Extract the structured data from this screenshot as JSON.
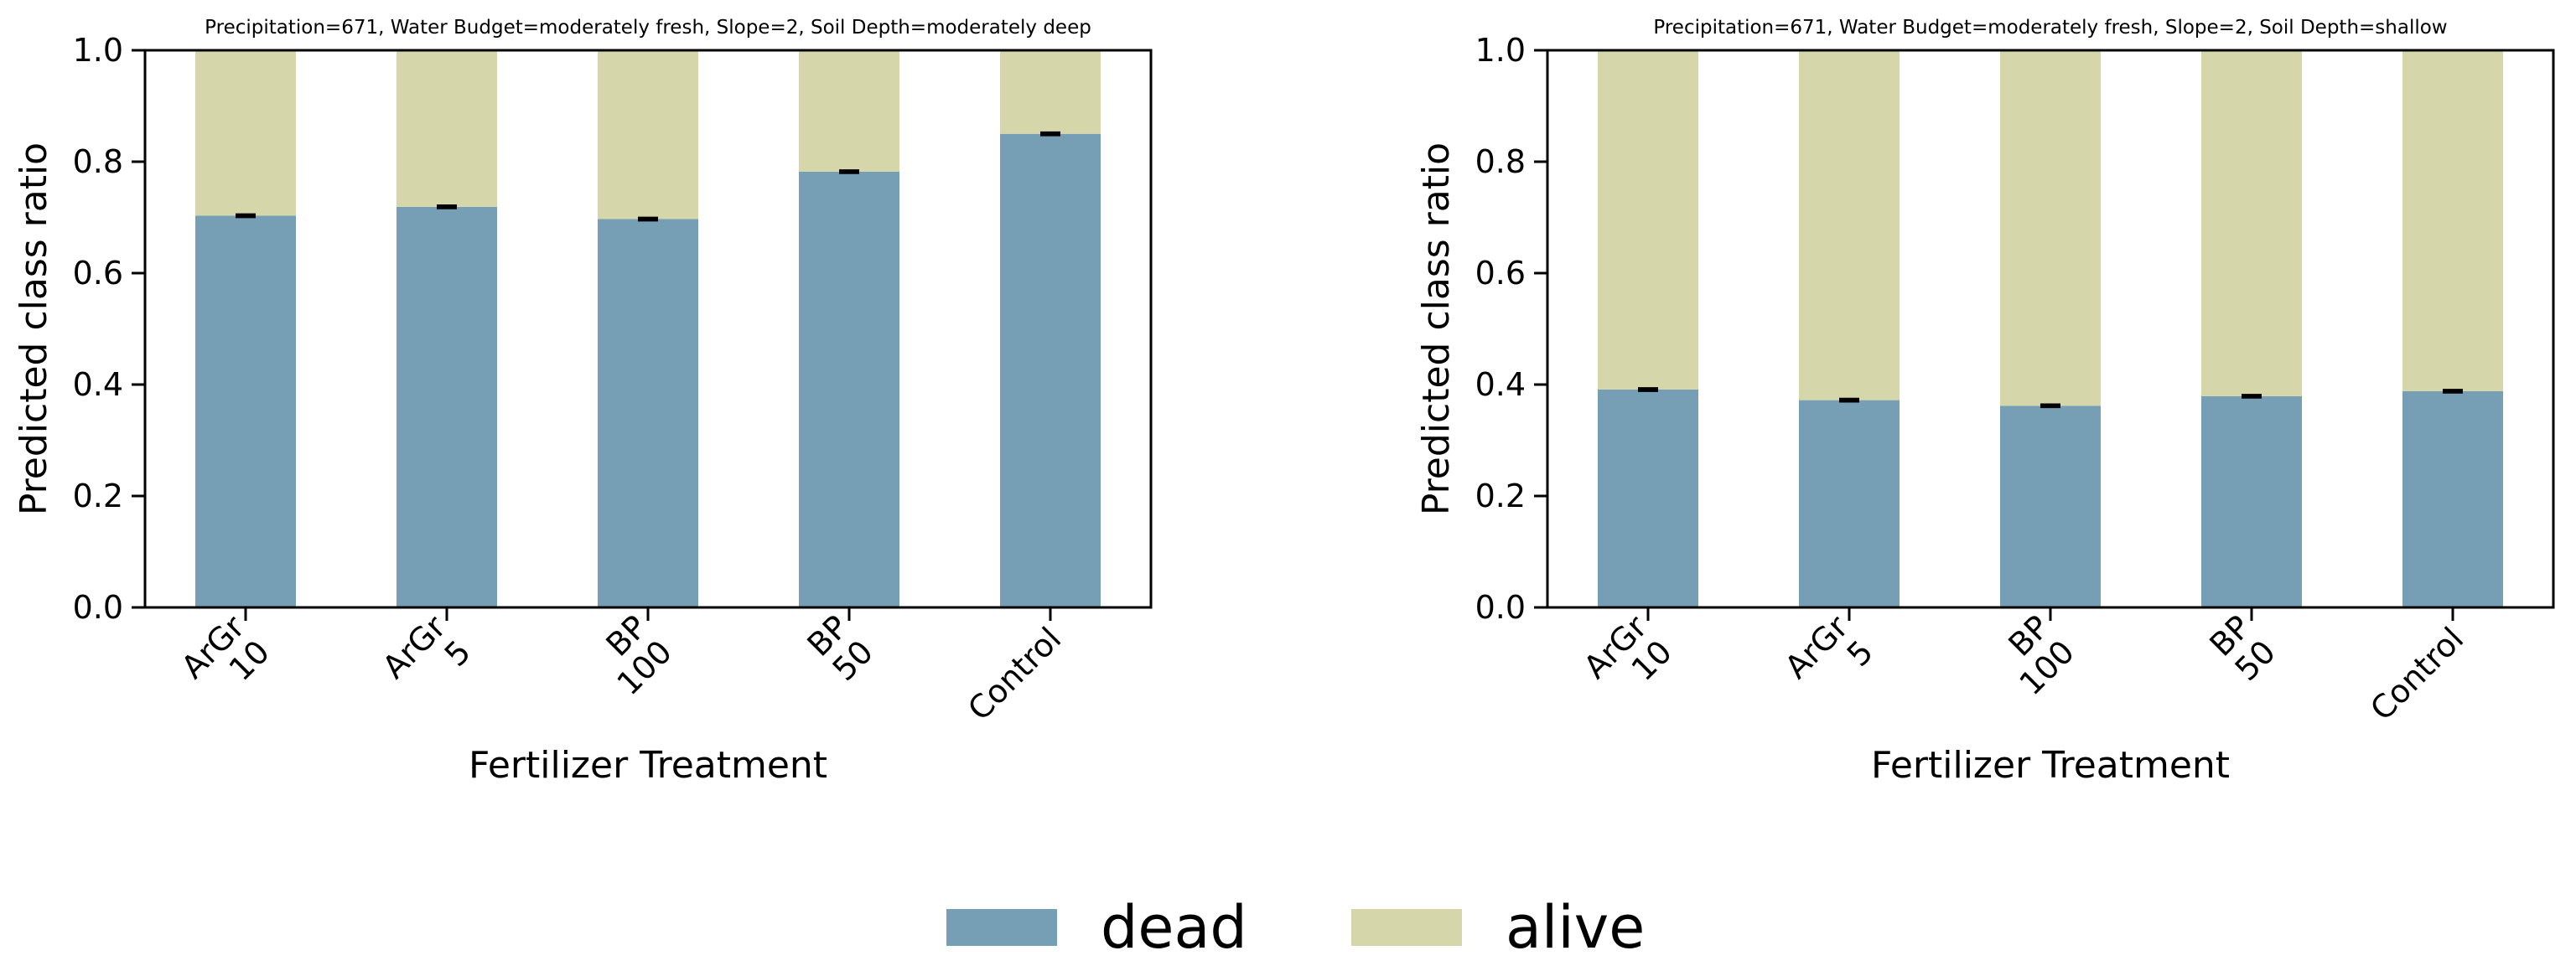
{
  "colors": {
    "dead": "#769fb6",
    "alive": "#d5d6aa",
    "axis": "#000000",
    "errbar": "#000000"
  },
  "legend": {
    "items": [
      {
        "label": "dead",
        "color": "#769fb6"
      },
      {
        "label": "alive",
        "color": "#d5d6aa"
      }
    ]
  },
  "chart_data": [
    {
      "type": "bar",
      "stacked": true,
      "title": "Precipitation=671, Water Budget=moderately fresh, Slope=2, Soil Depth=moderately deep",
      "xlabel": "Fertilizer Treatment",
      "ylabel": "Predicted class ratio",
      "ylim": [
        0,
        1
      ],
      "yticks": [
        "0.0",
        "0.2",
        "0.4",
        "0.6",
        "0.8",
        "1.0"
      ],
      "categories": [
        [
          "ArGr",
          "10"
        ],
        [
          "ArGr",
          "5"
        ],
        [
          "BP",
          "100"
        ],
        [
          "BP",
          "50"
        ],
        [
          "Control"
        ]
      ],
      "series": [
        {
          "name": "dead",
          "values": [
            0.703,
            0.719,
            0.697,
            0.782,
            0.85
          ]
        },
        {
          "name": "alive",
          "values": [
            0.297,
            0.281,
            0.303,
            0.218,
            0.15
          ]
        }
      ],
      "error_bars": [
        0.002,
        0.002,
        0.002,
        0.002,
        0.002
      ]
    },
    {
      "type": "bar",
      "stacked": true,
      "title": "Precipitation=671, Water Budget=moderately fresh, Slope=2, Soil Depth=shallow",
      "xlabel": "Fertilizer Treatment",
      "ylabel": "Predicted class ratio",
      "ylim": [
        0,
        1
      ],
      "yticks": [
        "0.0",
        "0.2",
        "0.4",
        "0.6",
        "0.8",
        "1.0"
      ],
      "categories": [
        [
          "ArGr",
          "10"
        ],
        [
          "ArGr",
          "5"
        ],
        [
          "BP",
          "100"
        ],
        [
          "BP",
          "50"
        ],
        [
          "Control"
        ]
      ],
      "series": [
        {
          "name": "dead",
          "values": [
            0.391,
            0.372,
            0.362,
            0.379,
            0.388
          ]
        },
        {
          "name": "alive",
          "values": [
            0.609,
            0.628,
            0.638,
            0.621,
            0.612
          ]
        }
      ],
      "error_bars": [
        0.002,
        0.002,
        0.002,
        0.002,
        0.002
      ]
    }
  ]
}
